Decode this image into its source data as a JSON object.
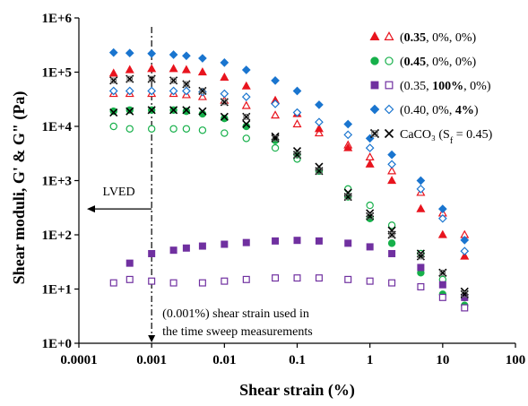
{
  "chart_data": {
    "type": "scatter",
    "xlabel": "Shear strain (%)",
    "ylabel": "Shear moduli, G' & G\" (Pa)",
    "x_scale": "log",
    "y_scale": "log",
    "xlim": [
      0.0001,
      100
    ],
    "ylim": [
      1,
      1000000
    ],
    "x_ticks": [
      "0.0001",
      "0.001",
      "0.01",
      "0.1",
      "1",
      "10",
      "100"
    ],
    "y_ticks": [
      "1E+0",
      "1E+1",
      "1E+2",
      "1E+3",
      "1E+4",
      "1E+5",
      "1E+6"
    ],
    "grid": false,
    "legend_position": "top-right",
    "series": [
      {
        "id": "s035",
        "color": "#e8141e",
        "marker": "triangle",
        "legend": [
          {
            "t": "(",
            "b": false
          },
          {
            "t": "0.35",
            "b": true
          },
          {
            "t": ", 0%, 0%)",
            "b": false
          }
        ],
        "storage": {
          "x": [
            0.0003,
            0.0005,
            0.001,
            0.002,
            0.003,
            0.005,
            0.01,
            0.02,
            0.05,
            0.1,
            0.2,
            0.5,
            1,
            2,
            5,
            10,
            20
          ],
          "y": [
            95000,
            110000,
            115000,
            115000,
            110000,
            100000,
            80000,
            55000,
            30000,
            17000,
            9000,
            4000,
            2000,
            1000,
            300,
            100,
            40
          ]
        },
        "loss": {
          "x": [
            0.0003,
            0.0005,
            0.001,
            0.002,
            0.003,
            0.005,
            0.01,
            0.02,
            0.05,
            0.1,
            0.2,
            0.5,
            1,
            2,
            5,
            10,
            20
          ],
          "y": [
            40000,
            40000,
            40000,
            40000,
            38000,
            35000,
            30000,
            24000,
            16000,
            11000,
            7500,
            4500,
            2700,
            1500,
            600,
            250,
            100
          ]
        }
      },
      {
        "id": "s045",
        "color": "#16b04a",
        "marker": "circle",
        "legend": [
          {
            "t": "(",
            "b": false
          },
          {
            "t": "0.45",
            "b": true
          },
          {
            "t": ", 0%, 0%)",
            "b": false
          }
        ],
        "storage": {
          "x": [
            0.0003,
            0.0005,
            0.001,
            0.002,
            0.003,
            0.005,
            0.01,
            0.02,
            0.05,
            0.1,
            0.2,
            0.5,
            1,
            2,
            5,
            10,
            20
          ],
          "y": [
            19000,
            20000,
            20000,
            20000,
            19000,
            17000,
            14000,
            10000,
            5500,
            3000,
            1500,
            500,
            200,
            70,
            20,
            8,
            5
          ]
        },
        "loss": {
          "x": [
            0.0003,
            0.0005,
            0.001,
            0.002,
            0.003,
            0.005,
            0.01,
            0.02,
            0.05,
            0.1,
            0.2,
            0.5,
            1,
            2,
            5,
            10,
            20
          ],
          "y": [
            10000,
            9000,
            9000,
            9000,
            9000,
            8500,
            7500,
            6000,
            4000,
            2500,
            1500,
            700,
            350,
            150,
            45,
            15,
            7
          ]
        }
      },
      {
        "id": "s035p",
        "color": "#7030a0",
        "marker": "square",
        "legend": [
          {
            "t": "(0.35, ",
            "b": false
          },
          {
            "t": "100%",
            "b": true
          },
          {
            "t": ", 0%)",
            "b": false
          }
        ],
        "storage": {
          "x": [
            0.0005,
            0.001,
            0.002,
            0.003,
            0.005,
            0.01,
            0.02,
            0.05,
            0.1,
            0.2,
            0.5,
            1,
            2,
            5,
            10,
            20
          ],
          "y": [
            30,
            45,
            52,
            57,
            62,
            67,
            72,
            77,
            79,
            77,
            70,
            60,
            45,
            25,
            12,
            7
          ]
        },
        "loss": {
          "x": [
            0.0003,
            0.0005,
            0.001,
            0.002,
            0.005,
            0.01,
            0.02,
            0.05,
            0.1,
            0.2,
            0.5,
            1,
            2,
            5,
            10,
            20
          ],
          "y": [
            13,
            15,
            14,
            13,
            13,
            14,
            15,
            16,
            16,
            16,
            15,
            14,
            13,
            11,
            7,
            4.5
          ]
        }
      },
      {
        "id": "s040",
        "color": "#1a75cf",
        "marker": "diamond",
        "legend": [
          {
            "t": "(0.40, 0%, ",
            "b": false
          },
          {
            "t": "4%",
            "b": true
          },
          {
            "t": ")",
            "b": false
          }
        ],
        "storage": {
          "x": [
            0.0003,
            0.0005,
            0.001,
            0.002,
            0.003,
            0.005,
            0.01,
            0.02,
            0.05,
            0.1,
            0.2,
            0.5,
            1,
            2,
            5,
            10,
            20
          ],
          "y": [
            230000,
            225000,
            220000,
            210000,
            200000,
            180000,
            150000,
            110000,
            70000,
            45000,
            25000,
            11000,
            6000,
            3000,
            1000,
            300,
            80
          ]
        },
        "loss": {
          "x": [
            0.0003,
            0.0005,
            0.001,
            0.002,
            0.003,
            0.005,
            0.01,
            0.02,
            0.05,
            0.1,
            0.2,
            0.5,
            1,
            2,
            5,
            10,
            20
          ],
          "y": [
            45000,
            45000,
            45000,
            45000,
            45000,
            43000,
            40000,
            35000,
            26000,
            18000,
            12000,
            7000,
            4000,
            2000,
            700,
            200,
            50
          ]
        }
      },
      {
        "id": "caco3",
        "color": "#000000",
        "marker": "cross",
        "legend": [
          {
            "t": "CaCO₃ (S",
            "b": false
          },
          {
            "t": "f",
            "b": false,
            "sub": true
          },
          {
            "t": " = 0.45)",
            "b": false
          }
        ],
        "storage": {
          "x": [
            0.0003,
            0.0005,
            0.001,
            0.002,
            0.003,
            0.005,
            0.01,
            0.02,
            0.05,
            0.1,
            0.2,
            0.5,
            1,
            2,
            5,
            10,
            20
          ],
          "y": [
            70000,
            75000,
            75000,
            70000,
            60000,
            45000,
            28000,
            15000,
            6000,
            3000,
            1500,
            500,
            220,
            100,
            40,
            20,
            8
          ]
        },
        "loss": {
          "x": [
            0.0003,
            0.0005,
            0.001,
            0.002,
            0.003,
            0.005,
            0.01,
            0.02,
            0.05,
            0.1,
            0.2,
            0.5,
            1,
            2,
            5,
            10,
            20
          ],
          "y": [
            18000,
            19000,
            20000,
            20000,
            20000,
            19000,
            15000,
            11000,
            6500,
            3500,
            1800,
            600,
            250,
            120,
            45,
            20,
            9
          ]
        }
      }
    ],
    "annotations": {
      "lved": "LVED",
      "strain_line_1": "(0.001%) shear strain used in",
      "strain_line_2": "the time sweep measurements",
      "vline_x": 0.001
    }
  }
}
